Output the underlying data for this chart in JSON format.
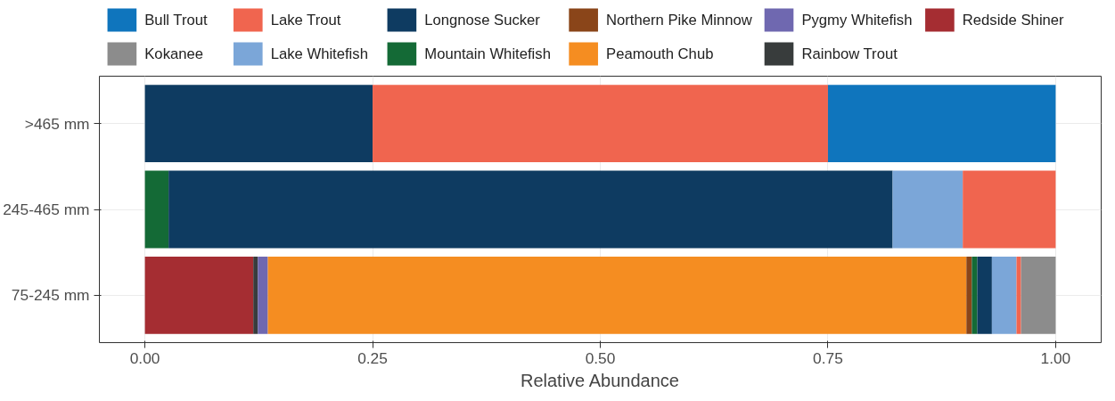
{
  "chart_data": {
    "type": "bar",
    "orientation": "horizontal",
    "stacked": true,
    "xlabel": "Relative Abundance",
    "categories": [
      ">465 mm",
      "245-465 mm",
      "75-245 mm"
    ],
    "series": [
      {
        "name": "Redside Shiner",
        "color": "#a52d32",
        "values": [
          0,
          0,
          0.119
        ]
      },
      {
        "name": "Rainbow Trout",
        "color": "#383c3c",
        "values": [
          0,
          0,
          0.005
        ]
      },
      {
        "name": "Pygmy Whitefish",
        "color": "#6f68b0",
        "values": [
          0,
          0,
          0.011
        ]
      },
      {
        "name": "Peamouth Chub",
        "color": "#f58d21",
        "values": [
          0,
          0,
          0.767
        ]
      },
      {
        "name": "Northern Pike Minnow",
        "color": "#8a4519",
        "values": [
          0,
          0,
          0.006
        ]
      },
      {
        "name": "Mountain Whitefish",
        "color": "#146a36",
        "values": [
          0,
          0.026,
          0.006
        ]
      },
      {
        "name": "Longnose Sucker",
        "color": "#0e3b61",
        "values": [
          0.25,
          0.795,
          0.016
        ]
      },
      {
        "name": "Lake Whitefish",
        "color": "#7ba6d8",
        "values": [
          0,
          0.077,
          0.027
        ]
      },
      {
        "name": "Lake Trout",
        "color": "#f0654f",
        "values": [
          0.5,
          0.102,
          0.005
        ]
      },
      {
        "name": "Kokanee",
        "color": "#8c8c8c",
        "values": [
          0,
          0,
          0.038
        ]
      },
      {
        "name": "Bull Trout",
        "color": "#0f75bd",
        "values": [
          0.25,
          0,
          0
        ]
      }
    ],
    "xlim": [
      -0.05,
      1.05
    ],
    "xticks": [
      {
        "value": 0,
        "label": "0.00"
      },
      {
        "value": 0.25,
        "label": "0.25"
      },
      {
        "value": 0.5,
        "label": "0.50"
      },
      {
        "value": 0.75,
        "label": "0.75"
      },
      {
        "value": 1,
        "label": "1.00"
      }
    ],
    "grid": true,
    "legend": "top"
  }
}
